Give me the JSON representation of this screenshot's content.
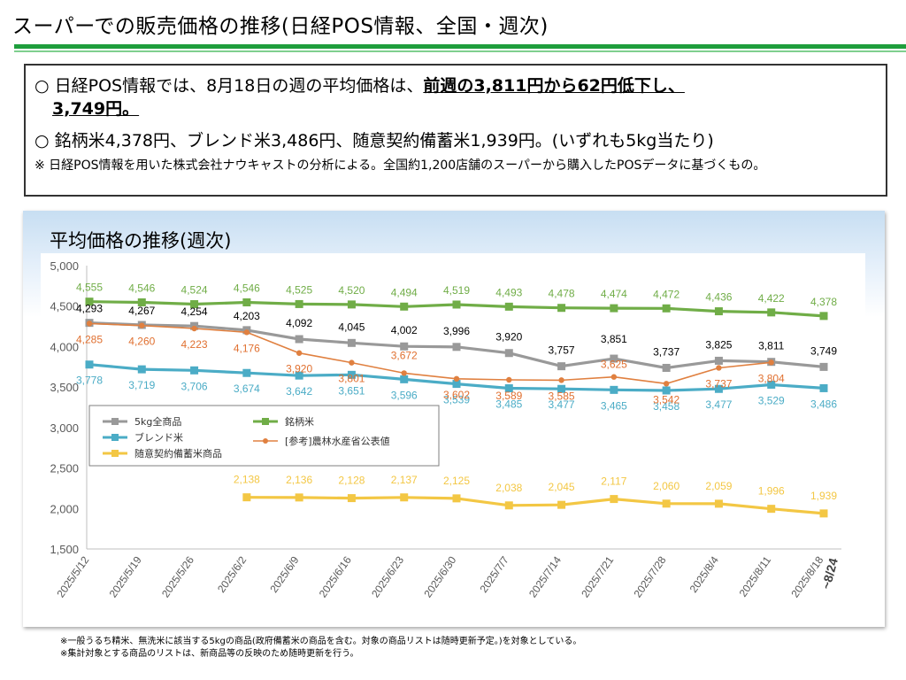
{
  "page": {
    "title": "スーパーでの販売価格の推移(日経POS情報、全国・週次)"
  },
  "summary": {
    "bullet1_prefix": "○  日経POS情報では、8月18日の週の平均価格は、",
    "bullet1_emphasis": "前週の3,811円から62円低下し、",
    "bullet1_emphasis2": "3,749円。",
    "bullet2": "○  銘柄米4,378円、ブレンド米3,486円、随意契約備蓄米1,939円。(いずれも5kg当たり)",
    "note": "※  日経POS情報を用いた株式会社ナウキャストの分析による。全国約1,200店舗のスーパーから購入したPOSデータに基づくもの。"
  },
  "chart_title": "平均価格の推移(週次)",
  "footnotes": [
    "※一般うるち精米、無洗米に該当する5kgの商品(政府備蓄米の商品を含む。対象の商品リストは随時更新予定。)を対象としている。",
    "※集計対象とする商品のリストは、新商品等の反映のため随時更新を行う。"
  ],
  "chart_data": {
    "type": "line",
    "title": "平均価格の推移(週次)",
    "x_categories": [
      "2025/5/12",
      "2025/5/19",
      "2025/5/26",
      "2025/6/2",
      "2025/6/9",
      "2025/6/16",
      "2025/6/23",
      "2025/6/30",
      "2025/7/7",
      "2025/7/14",
      "2025/7/21",
      "2025/7/28",
      "2025/8/4",
      "2025/8/11",
      "2025/8/18"
    ],
    "x_extra_label": "~8/24",
    "ylim": [
      1500,
      5000
    ],
    "yticks": [
      1500,
      2000,
      2500,
      3000,
      3500,
      4000,
      4500,
      5000
    ],
    "ytick_labels": [
      "1,500",
      "2,000",
      "2,500",
      "3,000",
      "3,500",
      "4,000",
      "4,500",
      "5,000"
    ],
    "legend_position": "center-left",
    "grid": false,
    "series": [
      {
        "name": "5kg全商品",
        "color": "#999999",
        "label_color": "#000000",
        "marker": "square",
        "values": [
          4293,
          4267,
          4254,
          4203,
          4092,
          4045,
          4002,
          3996,
          3920,
          3757,
          3851,
          3737,
          3825,
          3811,
          3749
        ],
        "labels": [
          "4,293",
          "4,267",
          "4,254",
          "4,203",
          "4,092",
          "4,045",
          "4,002",
          "3,996",
          "3,920",
          "3,757",
          "3,851",
          "3,737",
          "3,825",
          "3,811",
          "3,749"
        ]
      },
      {
        "name": "銘柄米",
        "color": "#70ad47",
        "label_color": "#70ad47",
        "marker": "square",
        "values": [
          4555,
          4546,
          4524,
          4546,
          4525,
          4520,
          4494,
          4519,
          4493,
          4478,
          4474,
          4472,
          4436,
          4422,
          4378
        ],
        "labels": [
          "4,555",
          "4,546",
          "4,524",
          "4,546",
          "4,525",
          "4,520",
          "4,494",
          "4,519",
          "4,493",
          "4,478",
          "4,474",
          "4,472",
          "4,436",
          "4,422",
          "4,378"
        ]
      },
      {
        "name": "ブレンド米",
        "color": "#4bacc6",
        "label_color": "#4bacc6",
        "marker": "square",
        "values": [
          3778,
          3719,
          3706,
          3674,
          3642,
          3651,
          3596,
          3539,
          3485,
          3477,
          3465,
          3458,
          3477,
          3529,
          3486
        ],
        "labels": [
          "3,778",
          "3,719",
          "3,706",
          "3,674",
          "3,642",
          "3,651",
          "3,596",
          "3,539",
          "3,485",
          "3,477",
          "3,465",
          "3,458",
          "3,477",
          "3,529",
          "3,486"
        ]
      },
      {
        "name": "[参考]農林水産省公表値",
        "color": "#e08040",
        "label_color": "#e07030",
        "marker": "circle",
        "values": [
          4285,
          4260,
          4223,
          4176,
          3920,
          3801,
          3672,
          3602,
          3589,
          3585,
          3625,
          3542,
          3737,
          3804,
          null
        ],
        "labels": [
          "4,285",
          "4,260",
          "4,223",
          "4,176",
          "3,920",
          "3,801",
          "3,672",
          "3,602",
          "3,589",
          "3,585",
          "3,625",
          "3,542",
          "3,737",
          "3,804",
          ""
        ]
      },
      {
        "name": "随意契約備蓄米商品",
        "color": "#f3c744",
        "label_color": "#f3c744",
        "marker": "square",
        "values": [
          null,
          null,
          null,
          2138,
          2136,
          2128,
          2137,
          2125,
          2038,
          2045,
          2117,
          2060,
          2059,
          1996,
          1939
        ],
        "labels": [
          "",
          "",
          "",
          "2,138",
          "2,136",
          "2,128",
          "2,137",
          "2,125",
          "2,038",
          "2,045",
          "2,117",
          "2,060",
          "2,059",
          "1,996",
          "1,939"
        ]
      }
    ],
    "legend_entries": [
      "5kg全商品",
      "銘柄米",
      "ブレンド米",
      "[参考]農林水産省公表値",
      "随意契約備蓄米商品"
    ]
  }
}
